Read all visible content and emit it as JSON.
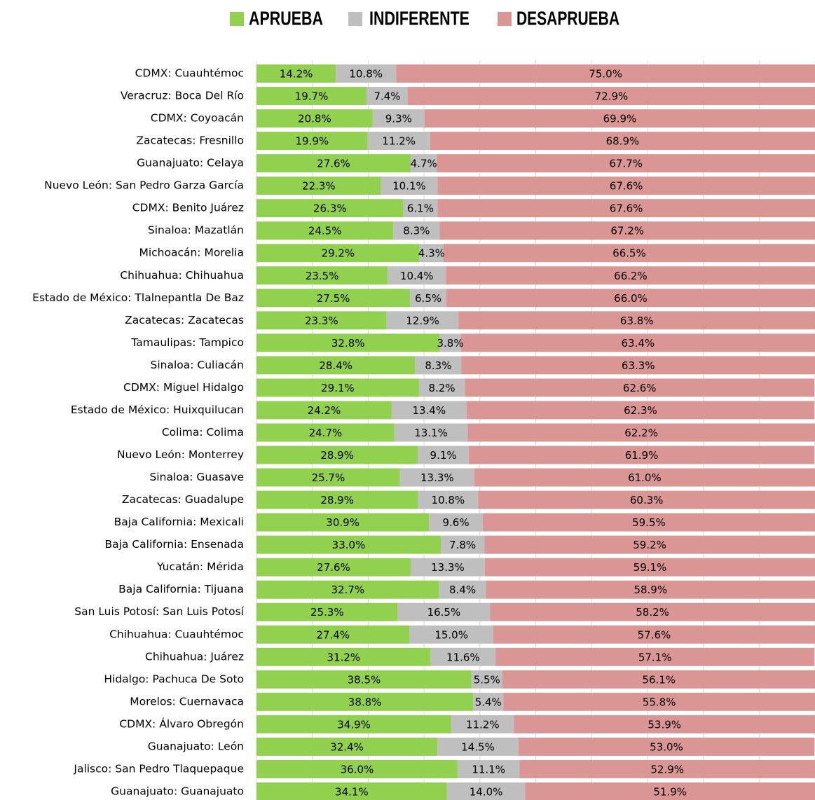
{
  "chart_data": {
    "type": "stacked-barh",
    "categories": [
      "CDMX: Cuauhtémoc",
      "Veracruz: Boca Del Río",
      "CDMX: Coyoacán",
      "Zacatecas: Fresnillo",
      "Guanajuato: Celaya",
      "Nuevo León: San Pedro Garza García",
      "CDMX: Benito Juárez",
      "Sinaloa: Mazatlán",
      "Michoacán: Morelia",
      "Chihuahua: Chihuahua",
      "Estado de México: Tlalnepantla De Baz",
      "Zacatecas: Zacatecas",
      "Tamaulipas: Tampico",
      "Sinaloa: Culiacán",
      "CDMX: Miguel Hidalgo",
      "Estado de México: Huixquilucan",
      "Colima: Colima",
      "Nuevo León: Monterrey",
      "Sinaloa: Guasave",
      "Zacatecas: Guadalupe",
      "Baja California: Mexicali",
      "Baja California: Ensenada",
      "Yucatán: Mérida",
      "Baja California: Tijuana",
      "San Luis Potosí: San Luis Potosí",
      "Chihuahua: Cuauhtémoc",
      "Chihuahua: Juárez",
      "Hidalgo: Pachuca De Soto",
      "Morelos: Cuernavaca",
      "CDMX: Álvaro Obregón",
      "Guanajuato: León",
      "Jalisco: San Pedro Tlaquepaque",
      "Guanajuato: Guanajuato"
    ],
    "series": [
      {
        "name": "APRUEBA",
        "color": "#92d050",
        "values": [
          14.2,
          19.7,
          20.8,
          19.9,
          27.6,
          22.3,
          26.3,
          24.5,
          29.2,
          23.5,
          27.5,
          23.3,
          32.8,
          28.4,
          29.1,
          24.2,
          24.7,
          28.9,
          25.7,
          28.9,
          30.9,
          33.0,
          27.6,
          32.7,
          25.3,
          27.4,
          31.2,
          38.5,
          38.8,
          34.9,
          32.4,
          36.0,
          34.1
        ],
        "value_labels": [
          "14.2%",
          "19.7%",
          "20.8%",
          "19.9%",
          "27.6%",
          "22.3%",
          "26.3%",
          "24.5%",
          "29.2%",
          "23.5%",
          "27.5%",
          "23.3%",
          "32.8%",
          "28.4%",
          "29.1%",
          "24.2%",
          "24.7%",
          "28.9%",
          "25.7%",
          "28.9%",
          "30.9%",
          "33.0%",
          "27.6%",
          "32.7%",
          "25.3%",
          "27.4%",
          "31.2%",
          "38.5%",
          "38.8%",
          "34.9%",
          "32.4%",
          "36.0%",
          "34.1%"
        ]
      },
      {
        "name": "INDIFERENTE",
        "color": "#bfbfbf",
        "values": [
          10.8,
          7.4,
          9.3,
          11.2,
          4.7,
          10.1,
          6.1,
          8.3,
          4.3,
          10.4,
          6.5,
          12.9,
          3.8,
          8.3,
          8.2,
          13.4,
          13.1,
          9.1,
          13.3,
          10.8,
          9.6,
          7.8,
          13.3,
          8.4,
          16.5,
          15.0,
          11.6,
          5.5,
          5.4,
          11.2,
          14.5,
          11.1,
          14.0
        ],
        "value_labels": [
          "10.8%",
          "7.4%",
          "9.3%",
          "11.2%",
          "4.7%",
          "10.1%",
          "6.1%",
          "8.3%",
          "4.3%",
          "10.4%",
          "6.5%",
          "12.9%",
          "3.8%",
          "8.3%",
          "8.2%",
          "13.4%",
          "13.1%",
          "9.1%",
          "13.3%",
          "10.8%",
          "9.6%",
          "7.8%",
          "13.3%",
          "8.4%",
          "16.5%",
          "15.0%",
          "11.6%",
          "5.5%",
          "5.4%",
          "11.2%",
          "14.5%",
          "11.1%",
          "14.0%"
        ]
      },
      {
        "name": "DESAPRUEBA",
        "color": "#da9694",
        "values": [
          75.0,
          72.9,
          69.9,
          68.9,
          67.7,
          67.6,
          67.6,
          67.2,
          66.5,
          66.2,
          66.0,
          63.8,
          63.4,
          63.3,
          62.6,
          62.3,
          62.2,
          61.9,
          61.0,
          60.3,
          59.5,
          59.2,
          59.1,
          58.9,
          58.2,
          57.6,
          57.1,
          56.1,
          55.8,
          53.9,
          53.0,
          52.9,
          51.9
        ],
        "value_labels": [
          "75.0%",
          "72.9%",
          "69.9%",
          "68.9%",
          "67.7%",
          "67.6%",
          "67.6%",
          "67.2%",
          "66.5%",
          "66.2%",
          "66.0%",
          "63.8%",
          "63.4%",
          "63.3%",
          "62.6%",
          "62.3%",
          "62.2%",
          "61.9%",
          "61.0%",
          "60.3%",
          "59.5%",
          "59.2%",
          "59.1%",
          "58.9%",
          "58.2%",
          "57.6%",
          "57.1%",
          "56.1%",
          "55.8%",
          "53.9%",
          "53.0%",
          "52.9%",
          "51.9%"
        ]
      }
    ],
    "xlim": [
      0,
      100
    ],
    "xticks": [
      0,
      10,
      20,
      30,
      40,
      50,
      60,
      70,
      80,
      90,
      100
    ],
    "grid": true,
    "legend": "top"
  }
}
